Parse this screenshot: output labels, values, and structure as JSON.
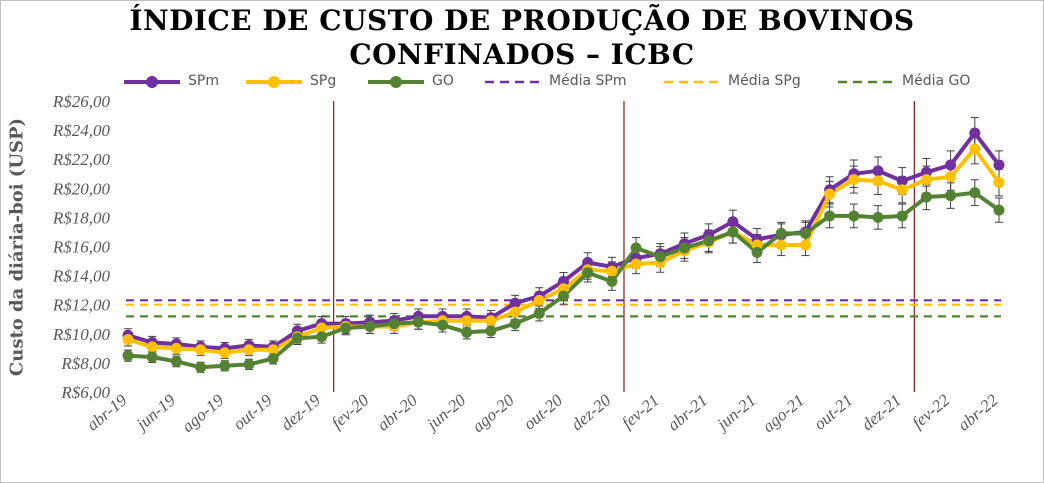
{
  "chart_data": {
    "type": "line",
    "title_line1": "ÍNDICE DE CUSTO DE PRODUÇÃO DE BOVINOS",
    "title_line2": "CONFINADOS – ICBC",
    "ylabel": "Custo da diária-boi  (USP)",
    "ylim": [
      6,
      26
    ],
    "yticks": [
      "R$6,00",
      "R$8,00",
      "R$10,00",
      "R$12,00",
      "R$14,00",
      "R$16,00",
      "R$18,00",
      "R$20,00",
      "R$22,00",
      "R$24,00",
      "R$26,00"
    ],
    "x": [
      "abr-19",
      "mai-19",
      "jun-19",
      "jul-19",
      "ago-19",
      "set-19",
      "out-19",
      "nov-19",
      "dez-19",
      "jan-20",
      "fev-20",
      "mar-20",
      "abr-20",
      "mai-20",
      "jun-20",
      "jul-20",
      "ago-20",
      "set-20",
      "out-20",
      "nov-20",
      "dez-20",
      "jan-21",
      "fev-21",
      "mar-21",
      "abr-21",
      "mai-21",
      "jun-21",
      "jul-21",
      "ago-21",
      "set-21",
      "out-21",
      "nov-21",
      "dez-21",
      "jan-22",
      "fev-22",
      "mar-22",
      "abr-22"
    ],
    "xtick_labels": [
      "abr-19",
      "jun-19",
      "ago-19",
      "out-19",
      "dez-19",
      "fev-20",
      "abr-20",
      "jun-20",
      "ago-20",
      "out-20",
      "dez-20",
      "fev-21",
      "abr-21",
      "jun-21",
      "ago-21",
      "out-21",
      "dez-21",
      "fev-22",
      "abr-22"
    ],
    "series": [
      {
        "name": "SPm",
        "color": "#7030a0",
        "marker": "circle",
        "values": [
          9.9,
          9.4,
          9.3,
          9.1,
          9.0,
          9.2,
          9.1,
          10.2,
          10.7,
          10.7,
          10.8,
          10.9,
          11.2,
          11.2,
          11.2,
          11.1,
          12.1,
          12.6,
          13.6,
          14.9,
          14.6,
          15.2,
          15.5,
          16.2,
          16.8,
          17.7,
          16.5,
          16.8,
          17.0,
          19.9,
          21.0,
          21.2,
          20.5,
          21.1,
          21.6,
          23.8,
          21.6
        ]
      },
      {
        "name": "SPg",
        "color": "#ffc000",
        "marker": "circle",
        "values": [
          9.6,
          9.1,
          9.0,
          8.9,
          8.7,
          8.9,
          8.9,
          9.8,
          10.4,
          10.5,
          10.5,
          10.5,
          10.8,
          10.9,
          10.9,
          10.9,
          11.5,
          12.3,
          13.1,
          14.4,
          14.3,
          14.8,
          14.9,
          15.7,
          16.3,
          17.0,
          16.1,
          16.1,
          16.1,
          19.6,
          20.6,
          20.5,
          19.9,
          20.6,
          20.8,
          22.7,
          20.4
        ]
      },
      {
        "name": "GO",
        "color": "#548235",
        "marker": "circle",
        "values": [
          8.5,
          8.4,
          8.1,
          7.7,
          7.8,
          7.9,
          8.3,
          9.7,
          9.8,
          10.4,
          10.5,
          10.7,
          10.8,
          10.6,
          10.1,
          10.2,
          10.7,
          11.4,
          12.6,
          14.2,
          13.6,
          15.9,
          15.3,
          15.9,
          16.4,
          17.0,
          15.6,
          16.9,
          16.9,
          18.1,
          18.1,
          18.0,
          18.1,
          19.4,
          19.5,
          19.7,
          18.5
        ]
      },
      {
        "name": "Média SPm",
        "color": "#7030a0",
        "dashed": true,
        "constant": 12.3
      },
      {
        "name": "Média SPg",
        "color": "#ffc000",
        "dashed": true,
        "constant": 12.0
      },
      {
        "name": "Média GO",
        "color": "#548235",
        "dashed": true,
        "constant": 11.2
      }
    ],
    "vertical_markers": [
      "jan-20",
      "jan-21",
      "jan-22"
    ],
    "error_bars": true,
    "grid": false,
    "legend_position": "top"
  }
}
